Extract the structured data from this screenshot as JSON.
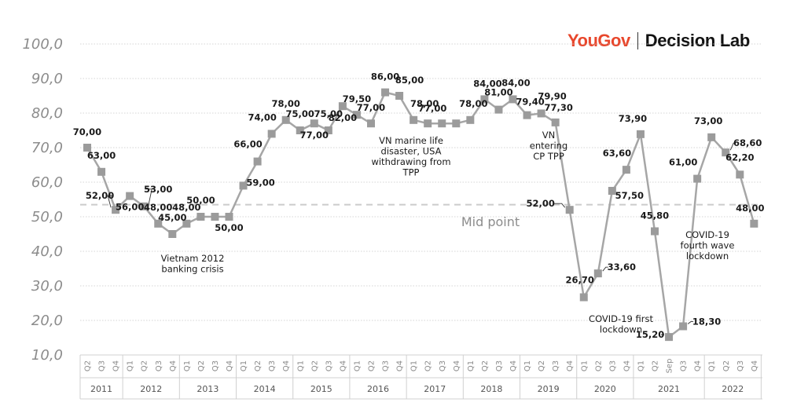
{
  "brand": {
    "yougov": "YouGov",
    "decision_lab": "Decision Lab"
  },
  "chart_data": {
    "type": "line",
    "ylim": [
      10,
      100
    ],
    "yticks": [
      "10,0",
      "20,0",
      "30,0",
      "40,0",
      "50,0",
      "60,0",
      "70,0",
      "80,0",
      "90,0",
      "100,0"
    ],
    "grid": true,
    "x": [
      "Q2",
      "Q3",
      "Q4",
      "Q1",
      "Q2",
      "Q3",
      "Q4",
      "Q1",
      "Q2",
      "Q3",
      "Q4",
      "Q1",
      "Q2",
      "Q3",
      "Q4",
      "Q1",
      "Q2",
      "Q3",
      "Q4",
      "Q1",
      "Q2",
      "Q3",
      "Q4",
      "Q1",
      "Q2",
      "Q3",
      "Q4",
      "Q1",
      "Q2",
      "Q3",
      "Q4",
      "Q1",
      "Q2",
      "Q3",
      "Q4",
      "Q1",
      "Q2",
      "Q3",
      "Q4",
      "Q1",
      "Q2",
      "Sep",
      "Q3",
      "Q4",
      "Q1",
      "Q2",
      "Q3",
      "Q4"
    ],
    "years": [
      {
        "label": "2011",
        "start": 0,
        "end": 2
      },
      {
        "label": "2012",
        "start": 3,
        "end": 6
      },
      {
        "label": "2013",
        "start": 7,
        "end": 10
      },
      {
        "label": "2014",
        "start": 11,
        "end": 14
      },
      {
        "label": "2015",
        "start": 15,
        "end": 18
      },
      {
        "label": "2016",
        "start": 19,
        "end": 22
      },
      {
        "label": "2017",
        "start": 23,
        "end": 26
      },
      {
        "label": "2018",
        "start": 27,
        "end": 30
      },
      {
        "label": "2019",
        "start": 31,
        "end": 34
      },
      {
        "label": "2020",
        "start": 35,
        "end": 38
      },
      {
        "label": "2021",
        "start": 39,
        "end": 43
      },
      {
        "label": "2022",
        "start": 44,
        "end": 47
      }
    ],
    "values": [
      70,
      63,
      52,
      56,
      53,
      48,
      45,
      48,
      50,
      50,
      50,
      59,
      66,
      74,
      78,
      75,
      77,
      75,
      82,
      79.5,
      77,
      86,
      85,
      78,
      77,
      77,
      77,
      78,
      84,
      81,
      84,
      79.4,
      79.9,
      77.3,
      52,
      26.7,
      33.6,
      57.5,
      63.6,
      73.9,
      45.8,
      15.2,
      18.3,
      61,
      73,
      68.6,
      62.2,
      48
    ],
    "labels": [
      "70,00",
      "63,00",
      "52,00",
      "56,00",
      "53,00",
      "48,00",
      "45,00",
      "48,00",
      "50,00",
      "",
      "50,00",
      "59,00",
      "66,00",
      "74,00",
      "78,00",
      "75,00",
      "77,00",
      "75,00",
      "82,00",
      "79,50",
      "77,00",
      "86,00",
      "85,00",
      "78,00",
      "77,00",
      "",
      "",
      "78,00",
      "84,00",
      "81,00",
      "84,00",
      "79,40",
      "79,90",
      "77,30",
      "52,00",
      "26,70",
      "33,60",
      "57,50",
      "63,60",
      "73,90",
      "45,80",
      "15,20",
      "18,30",
      "61,00",
      "73,00",
      "68,60",
      "62,20",
      "48,00"
    ],
    "midpoint": {
      "value": 53.5,
      "label": "Mid point"
    },
    "annotations": [
      {
        "lines": [
          "Vietnam 2012",
          "banking crisis"
        ]
      },
      {
        "lines": [
          "VN marine life",
          "disaster, USA",
          "withdrawing from",
          "TPP"
        ]
      },
      {
        "lines": [
          "VN",
          "entering",
          "CP TPP"
        ]
      },
      {
        "lines": [
          "COVID-19 first",
          "lockdown"
        ]
      },
      {
        "lines": [
          "COVID-19",
          "fourth wave",
          "lockdown"
        ]
      }
    ],
    "colors": {
      "line": "#a6a6a6",
      "marker": "#9b9b9b",
      "grid": "#c8c8c8",
      "midline": "#cccccc"
    }
  }
}
